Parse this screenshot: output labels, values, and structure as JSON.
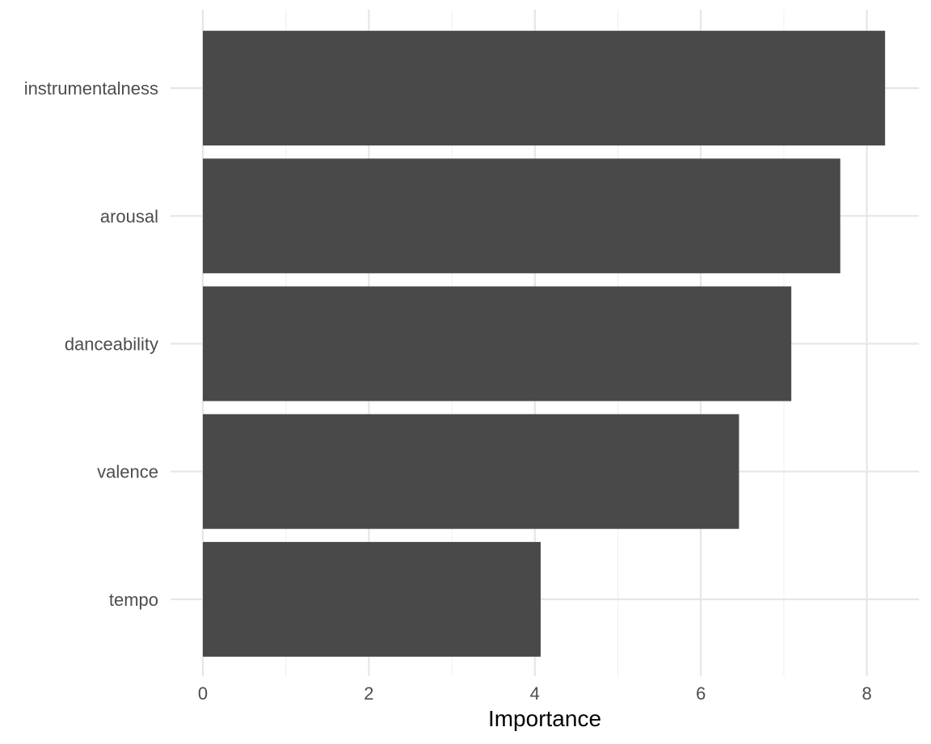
{
  "chart_data": {
    "type": "bar",
    "orientation": "horizontal",
    "categories": [
      "instrumentalness",
      "arousal",
      "danceability",
      "valence",
      "tempo"
    ],
    "values": [
      8.22,
      7.68,
      7.09,
      6.46,
      4.07
    ],
    "xlabel": "Importance",
    "ylabel": "",
    "xlim": [
      0,
      8.5
    ],
    "xticks": [
      0,
      2,
      4,
      6,
      8
    ],
    "grid": true,
    "bar_color": "#494949"
  }
}
